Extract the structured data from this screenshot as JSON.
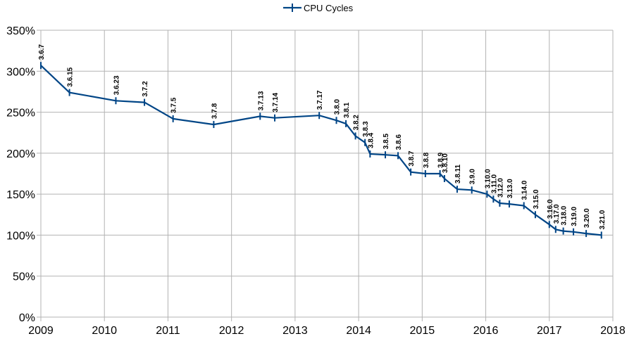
{
  "chart_data": {
    "type": "line",
    "legend": {
      "label": "CPU Cycles",
      "position": "top-center"
    },
    "x_axis": {
      "min": 2009,
      "max": 2018,
      "ticks": [
        "2009",
        "2010",
        "2011",
        "2012",
        "2013",
        "2014",
        "2015",
        "2016",
        "2017",
        "2018"
      ]
    },
    "y_axis": {
      "min": 0,
      "max": 350,
      "unit": "%",
      "ticks": [
        "0%",
        "50%",
        "100%",
        "150%",
        "200%",
        "250%",
        "300%",
        "350%"
      ]
    },
    "grid": true,
    "series_color": "#004586",
    "series": [
      {
        "name": "CPU Cycles",
        "points": [
          {
            "x": 2009.0,
            "y": 307,
            "label": "3.6.7"
          },
          {
            "x": 2009.45,
            "y": 274,
            "label": "3.6.15"
          },
          {
            "x": 2010.18,
            "y": 264,
            "label": "3.6.23"
          },
          {
            "x": 2010.63,
            "y": 262,
            "label": "3.7.2"
          },
          {
            "x": 2011.08,
            "y": 242,
            "label": "3.7.5"
          },
          {
            "x": 2011.72,
            "y": 235,
            "label": "3.7.8"
          },
          {
            "x": 2012.45,
            "y": 245,
            "label": "3.7.13"
          },
          {
            "x": 2012.68,
            "y": 243,
            "label": "3.7.14"
          },
          {
            "x": 2013.38,
            "y": 246,
            "label": "3.7.17"
          },
          {
            "x": 2013.65,
            "y": 240,
            "label": "3.8.0"
          },
          {
            "x": 2013.8,
            "y": 236,
            "label": "3.8.1"
          },
          {
            "x": 2013.95,
            "y": 221,
            "label": "3.8.2"
          },
          {
            "x": 2014.1,
            "y": 213,
            "label": "3.8.3"
          },
          {
            "x": 2014.18,
            "y": 199,
            "label": "3.8.4"
          },
          {
            "x": 2014.42,
            "y": 198,
            "label": "3.8.5"
          },
          {
            "x": 2014.62,
            "y": 197,
            "label": "3.8.6"
          },
          {
            "x": 2014.82,
            "y": 177,
            "label": "3.8.7"
          },
          {
            "x": 2015.05,
            "y": 175,
            "label": "3.8.8"
          },
          {
            "x": 2015.28,
            "y": 175,
            "label": "3.8.9"
          },
          {
            "x": 2015.35,
            "y": 169,
            "label": "3.8.10"
          },
          {
            "x": 2015.55,
            "y": 156,
            "label": "3.8.11"
          },
          {
            "x": 2015.78,
            "y": 155,
            "label": "3.9.0"
          },
          {
            "x": 2016.02,
            "y": 150,
            "label": "3.10.0"
          },
          {
            "x": 2016.12,
            "y": 144,
            "label": "3.11.0"
          },
          {
            "x": 2016.22,
            "y": 139,
            "label": "3.12.0"
          },
          {
            "x": 2016.37,
            "y": 138,
            "label": "3.13.0"
          },
          {
            "x": 2016.6,
            "y": 136,
            "label": "3.14.0"
          },
          {
            "x": 2016.78,
            "y": 125,
            "label": "3.15.0"
          },
          {
            "x": 2017.0,
            "y": 113,
            "label": "3.16.0"
          },
          {
            "x": 2017.1,
            "y": 107,
            "label": "3.17.0"
          },
          {
            "x": 2017.22,
            "y": 105,
            "label": "3.18.0"
          },
          {
            "x": 2017.38,
            "y": 104,
            "label": "3.19.0"
          },
          {
            "x": 2017.58,
            "y": 102,
            "label": "3.20.0"
          },
          {
            "x": 2017.82,
            "y": 100,
            "label": "3.21.0"
          }
        ]
      }
    ]
  }
}
